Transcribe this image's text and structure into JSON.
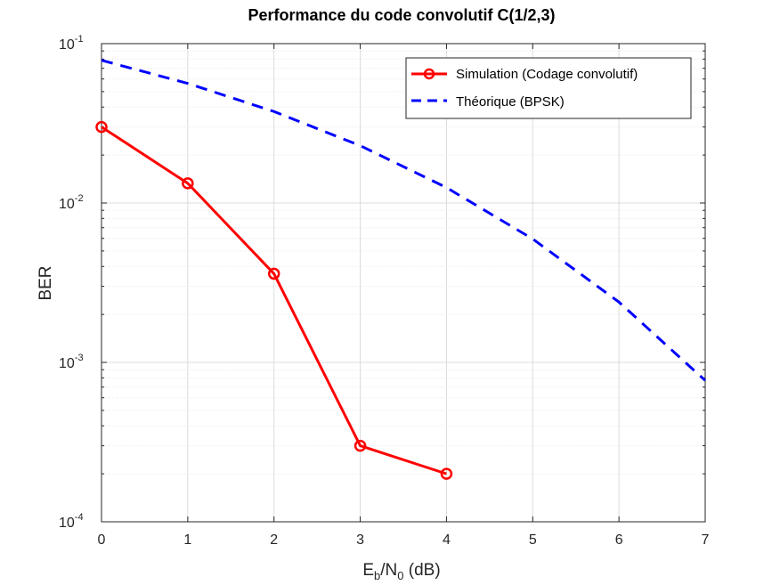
{
  "chart_data": {
    "type": "line",
    "title": "Performance du code convolutif C(1/2,3)",
    "xlabel": {
      "main": "E",
      "sub1": "b",
      "mid": "/N",
      "sub2": "0",
      "tail": " (dB)"
    },
    "ylabel": "BER",
    "xlim": [
      0,
      7
    ],
    "ylim": [
      0.0001,
      0.1
    ],
    "yscale": "log",
    "grid": true,
    "legend_position": "top-right",
    "x_ticks": [
      "0",
      "1",
      "2",
      "3",
      "4",
      "5",
      "6",
      "7"
    ],
    "y_ticks": [
      {
        "base": "10",
        "exp": "-1"
      },
      {
        "base": "10",
        "exp": "-2"
      },
      {
        "base": "10",
        "exp": "-3"
      },
      {
        "base": "10",
        "exp": "-4"
      }
    ],
    "series": [
      {
        "name": "Simulation (Codage convolutif)",
        "color": "#ff0000",
        "style": "solid",
        "marker": "circle",
        "x": [
          0,
          1,
          2,
          3,
          4
        ],
        "y": [
          0.03,
          0.0133,
          0.0036,
          0.0003,
          0.0002
        ]
      },
      {
        "name": "Théorique (BPSK)",
        "color": "#0000ff",
        "style": "dashed",
        "marker": "none",
        "x": [
          0,
          1,
          2,
          3,
          4,
          5,
          6,
          7
        ],
        "y": [
          0.0786,
          0.0563,
          0.0375,
          0.0229,
          0.0125,
          0.00595,
          0.00239,
          0.00077
        ]
      }
    ]
  }
}
